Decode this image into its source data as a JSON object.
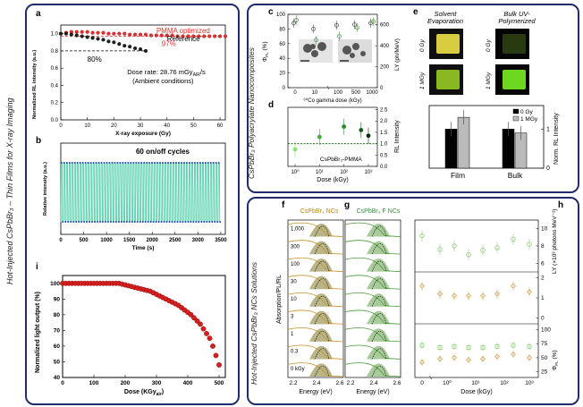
{
  "side_titles": {
    "left": "Hot-Injected CsPbBr₃ – Thin Films for X-ray Imaging",
    "top_right": "CsPbBr₃ Polyacrylate Nanocomposites",
    "bottom_right": "Hot-Injected CsPbBr₃ NCs Solutions"
  },
  "panel_labels": {
    "a": "a",
    "b": "b",
    "c": "c",
    "d": "d",
    "e": "e",
    "f": "f",
    "g": "g",
    "h": "h",
    "i": "i"
  },
  "chart_data": [
    {
      "id": "a",
      "type": "scatter",
      "xlabel": "X-ray exposure (Gy)",
      "ylabel": "Normalized RL intensity (a.u.)",
      "xticks": [
        "0",
        "10",
        "20",
        "30",
        "40",
        "50",
        "60"
      ],
      "yticks": [
        "0.0",
        "0.2",
        "0.4",
        "0.6",
        "0.8",
        "1.0"
      ],
      "xlim": [
        0,
        62
      ],
      "ylim": [
        0,
        1.1
      ],
      "series": [
        {
          "name": "PMMA optimized",
          "color": "#e03030",
          "x": [
            0,
            2,
            4,
            6,
            8,
            10,
            12,
            14,
            16,
            18,
            20,
            22,
            24,
            26,
            28,
            30,
            32,
            34,
            36,
            38,
            40,
            42,
            44,
            46,
            48,
            50,
            52,
            54,
            56,
            58,
            60,
            62
          ],
          "y": [
            1.0,
            1.01,
            1.02,
            1.02,
            1.02,
            1.02,
            1.01,
            1.01,
            1.01,
            1.0,
            1.0,
            1.0,
            1.0,
            0.99,
            0.99,
            0.99,
            0.99,
            0.98,
            0.98,
            0.98,
            0.98,
            0.98,
            0.97,
            0.97,
            0.97,
            0.97,
            0.97,
            0.97,
            0.97,
            0.97,
            0.97,
            0.97
          ]
        },
        {
          "name": "Reference",
          "color": "#222222",
          "x": [
            0,
            2,
            4,
            6,
            8,
            10,
            12,
            14,
            16,
            18,
            20,
            22,
            24,
            26,
            28,
            30,
            32
          ],
          "y": [
            1.0,
            1.0,
            0.99,
            0.98,
            0.97,
            0.96,
            0.95,
            0.94,
            0.93,
            0.91,
            0.9,
            0.88,
            0.86,
            0.85,
            0.83,
            0.82,
            0.8
          ]
        }
      ],
      "annotations": [
        "97%",
        "80%"
      ],
      "note_line1": "Dose rate: 28.76 mGy",
      "note_sub": "AIR",
      "note_line1_end": "/s",
      "note_line2": "(Ambient conditions)"
    },
    {
      "id": "b",
      "type": "line",
      "title": "60 on/off cycles",
      "xlabel": "Time (s)",
      "ylabel": "Relative intensity (a.u.)",
      "xticks": [
        "0",
        "500",
        "1000",
        "1500",
        "2000",
        "2500",
        "3000",
        "3500"
      ],
      "xlim": [
        0,
        3600
      ],
      "cycles": 60,
      "y_on": 1.0,
      "y_off": 0.0,
      "color": "#3ec9a0"
    },
    {
      "id": "c",
      "type": "scatter",
      "xlabel": "⁶⁰Co gamma dose (kGy)",
      "ylabel_left": "Φ",
      "ylabel_left_sub": "PL",
      "ylabel_left_end": " (%)",
      "ylabel_right": "LY (ph/MeV)",
      "xticks": [
        "0",
        "10",
        "100",
        "500",
        "1000"
      ],
      "yticks_left": [
        "0",
        "20",
        "40",
        "60",
        "80",
        "100"
      ],
      "yticks_right": [
        "0",
        "200",
        "400",
        "600"
      ],
      "series": [
        {
          "name": "ΦPL",
          "color": "#555555",
          "values": [
            88,
            80,
            85,
            86,
            88
          ]
        },
        {
          "name": "LY",
          "color": "#3aaa3a",
          "values": [
            92,
            65,
            70,
            82,
            90
          ]
        }
      ]
    },
    {
      "id": "d",
      "type": "scatter",
      "xlabel": "Dose (kGy)",
      "ylabel": "RL Intensity",
      "legend": "CsPbBr₃-PMMA",
      "xticks": [
        "10⁰",
        "10¹",
        "10²",
        "10³"
      ],
      "yticks": [
        "0.0",
        "0.5",
        "1.0",
        "1.5",
        "2.0",
        "2.5"
      ],
      "reference_y": 1.0,
      "ylim": [
        0,
        2.6
      ],
      "points": [
        {
          "x": 0.0,
          "y": 0.75,
          "color": "#90e070"
        },
        {
          "x": 1.0,
          "y": 1.3,
          "color": "#3db03d"
        },
        {
          "x": 2.0,
          "y": 1.75,
          "color": "#2a8a2a"
        },
        {
          "x": 2.7,
          "y": 1.6,
          "color": "#1a5a1a"
        },
        {
          "x": 3.0,
          "y": 1.35,
          "color": "#0a2a0a"
        }
      ]
    },
    {
      "id": "e",
      "type": "bar",
      "columns": [
        "Solvent Evaporation",
        "Bulk UV-Polymerized"
      ],
      "row_labels": [
        "0 Gy",
        "1 MGy"
      ],
      "categories": [
        "Film",
        "Bulk"
      ],
      "ylabel": "Norm. RL Intensity",
      "yticks": [
        "0",
        "1"
      ],
      "ylim": [
        0,
        1.6
      ],
      "series": [
        {
          "name": "0 Gy",
          "color": "#000000",
          "values": [
            1.0,
            1.0
          ]
        },
        {
          "name": "1 MGy",
          "color": "#bbbbbb",
          "values": [
            1.3,
            0.9
          ]
        }
      ]
    },
    {
      "id": "f",
      "type": "area",
      "title": "CsPbBr₃ NCs",
      "title_color": "#b8860b",
      "ylabel": "Absorption/PL/RL",
      "xlabel": "Energy (eV)",
      "xticks": [
        "2.2",
        "2.4",
        "2.6"
      ],
      "doses": [
        "1,000",
        "300",
        "100",
        "30",
        "10",
        "3",
        "1",
        "0.3",
        "0 kGy"
      ]
    },
    {
      "id": "g",
      "type": "area",
      "title": "CsPbBr₃ F NCs",
      "title_color": "#3a8a3a",
      "xlabel": "Energy (eV)",
      "xticks": [
        "2.2",
        "2.4",
        "2.6"
      ]
    },
    {
      "id": "h",
      "type": "scatter",
      "xlabel": "Dose (kGy)",
      "xticks": [
        "0",
        "10⁰",
        "10¹",
        "10²",
        "10³"
      ],
      "ylabel_top": "LY (×10³ photons MeV⁻¹)",
      "yticks_top": [
        "6",
        "8",
        "10"
      ],
      "yticks_mid": [
        "0",
        "1",
        "2"
      ],
      "ylabel_bottom": "Φ",
      "ylabel_bottom_sub": "PL",
      "ylabel_bottom_end": " (%)",
      "yticks_bottom": [
        "25",
        "50",
        "75",
        "100"
      ],
      "top_series": [
        9.2,
        7.6,
        8.0,
        7.0,
        7.5,
        7.8,
        8.8,
        8.2
      ],
      "mid_series_a": [
        1.6,
        1.2,
        1.1,
        1.1,
        1.1,
        1.2,
        1.6,
        1.3
      ],
      "bottom_series_a": [
        72,
        68,
        70,
        68,
        68,
        70,
        72,
        70
      ],
      "bottom_series_b": [
        42,
        48,
        50,
        46,
        48,
        52,
        56,
        50
      ],
      "color_green": "#8fce7a",
      "color_orange": "#d7a75c"
    },
    {
      "id": "i",
      "type": "scatter",
      "xlabel": "Dose",
      "xlabel_units": "(KGy",
      "xlabel_sub": "air",
      "xlabel_end": ")",
      "ylabel": "Normalized light output (%)",
      "xticks": [
        "0",
        "100",
        "200",
        "300",
        "400",
        "500"
      ],
      "yticks": [
        "40",
        "50",
        "60",
        "70",
        "80",
        "90",
        "100"
      ],
      "xlim": [
        0,
        520
      ],
      "ylim": [
        40,
        105
      ],
      "color": "#d62020",
      "x": [
        0,
        10,
        20,
        30,
        40,
        50,
        60,
        70,
        80,
        90,
        100,
        110,
        120,
        130,
        140,
        150,
        160,
        170,
        180,
        190,
        200,
        210,
        220,
        230,
        240,
        250,
        260,
        270,
        280,
        290,
        300,
        310,
        320,
        330,
        340,
        350,
        360,
        370,
        380,
        390,
        400,
        410,
        420,
        430,
        440,
        450,
        460,
        470,
        480,
        490,
        500
      ],
      "y": [
        100,
        100,
        100,
        100,
        100,
        100,
        100,
        100,
        100,
        100,
        100,
        100,
        100,
        100,
        100,
        100,
        100,
        100,
        100,
        99.5,
        99,
        98.5,
        98,
        97.5,
        97,
        96.5,
        96,
        95.5,
        95,
        94,
        93,
        92,
        91,
        90,
        89,
        88,
        87,
        86,
        84.5,
        83,
        81.5,
        80,
        78,
        76,
        74,
        71,
        68,
        65,
        60,
        54,
        48
      ]
    }
  ]
}
